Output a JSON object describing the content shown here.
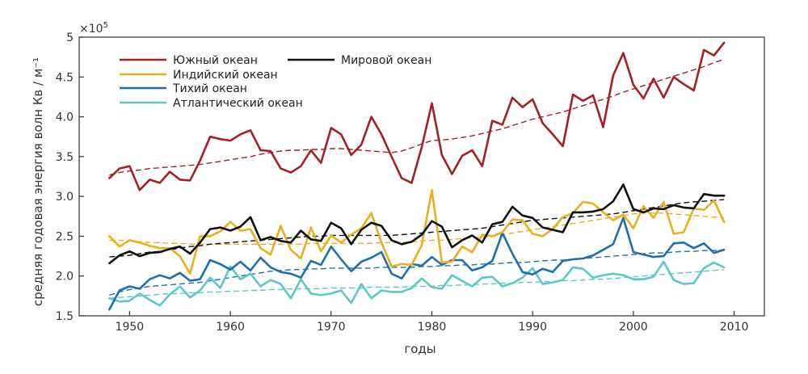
{
  "chart_data": {
    "type": "line",
    "xlabel": "годы",
    "ylabel": "средняя годовая энергия волн Кв / м⁻¹",
    "y_multiplier": "×10",
    "y_multiplier_exp": "5",
    "xlim": [
      1945,
      2013
    ],
    "ylim": [
      1.5,
      5.0
    ],
    "xticks": [
      "1950",
      "1960",
      "1970",
      "1980",
      "1990",
      "2000",
      "2010"
    ],
    "yticks": [
      "1.5",
      "2.0",
      "2.5",
      "3.0",
      "3.5",
      "4.0",
      "4.5",
      "5"
    ],
    "grid": false,
    "legend_position": "top-left",
    "years": [
      1948,
      1949,
      1950,
      1951,
      1952,
      1953,
      1954,
      1955,
      1956,
      1957,
      1958,
      1959,
      1960,
      1961,
      1962,
      1963,
      1964,
      1965,
      1966,
      1967,
      1968,
      1969,
      1970,
      1971,
      1972,
      1973,
      1974,
      1975,
      1976,
      1977,
      1978,
      1979,
      1980,
      1981,
      1982,
      1983,
      1984,
      1985,
      1986,
      1987,
      1988,
      1989,
      1990,
      1991,
      1992,
      1993,
      1994,
      1995,
      1996,
      1997,
      1998,
      1999,
      2000,
      2001,
      2002,
      2003,
      2004,
      2005,
      2006,
      2007,
      2008,
      2009
    ],
    "series": [
      {
        "name": "Южный океан",
        "color": "#a32024",
        "values": [
          3.23,
          3.35,
          3.38,
          3.08,
          3.21,
          3.17,
          3.31,
          3.21,
          3.2,
          3.45,
          3.75,
          3.72,
          3.7,
          3.78,
          3.83,
          3.58,
          3.57,
          3.35,
          3.3,
          3.38,
          3.58,
          3.42,
          3.86,
          3.78,
          3.52,
          3.65,
          4.0,
          3.78,
          3.5,
          3.23,
          3.17,
          3.62,
          4.17,
          3.52,
          3.28,
          3.51,
          3.58,
          3.38,
          3.95,
          3.9,
          4.24,
          4.12,
          4.22,
          3.92,
          3.78,
          3.63,
          4.28,
          4.2,
          4.27,
          3.87,
          4.52,
          4.8,
          4.4,
          4.23,
          4.48,
          4.24,
          4.5,
          4.41,
          4.33,
          4.84,
          4.77,
          4.93
        ],
        "trend": [
          3.27,
          3.3,
          3.32,
          3.33,
          3.35,
          3.36,
          3.37,
          3.38,
          3.39,
          3.4,
          3.42,
          3.44,
          3.46,
          3.48,
          3.5,
          3.53,
          3.55,
          3.57,
          3.58,
          3.58,
          3.59,
          3.59,
          3.6,
          3.6,
          3.59,
          3.58,
          3.57,
          3.56,
          3.55,
          3.57,
          3.61,
          3.66,
          3.7,
          3.71,
          3.72,
          3.74,
          3.76,
          3.79,
          3.82,
          3.85,
          3.89,
          3.93,
          3.97,
          4.0,
          4.03,
          4.06,
          4.1,
          4.14,
          4.18,
          4.22,
          4.26,
          4.31,
          4.35,
          4.39,
          4.43,
          4.47,
          4.51,
          4.55,
          4.59,
          4.63,
          4.68,
          4.72
        ]
      },
      {
        "name": "Мировой океан",
        "color": "#111111",
        "values": [
          2.16,
          2.26,
          2.31,
          2.25,
          2.29,
          2.3,
          2.34,
          2.37,
          2.28,
          2.42,
          2.59,
          2.61,
          2.57,
          2.62,
          2.74,
          2.45,
          2.49,
          2.44,
          2.42,
          2.57,
          2.46,
          2.44,
          2.67,
          2.6,
          2.4,
          2.58,
          2.67,
          2.63,
          2.45,
          2.4,
          2.43,
          2.52,
          2.69,
          2.62,
          2.36,
          2.45,
          2.51,
          2.42,
          2.65,
          2.68,
          2.87,
          2.76,
          2.73,
          2.61,
          2.58,
          2.55,
          2.8,
          2.8,
          2.81,
          2.84,
          2.94,
          3.15,
          2.84,
          2.8,
          2.85,
          2.84,
          2.89,
          2.86,
          2.85,
          3.03,
          3.01,
          3.01
        ],
        "trend": [
          2.24,
          2.25,
          2.26,
          2.28,
          2.3,
          2.31,
          2.33,
          2.35,
          2.37,
          2.38,
          2.4,
          2.41,
          2.42,
          2.43,
          2.44,
          2.45,
          2.46,
          2.47,
          2.48,
          2.49,
          2.5,
          2.5,
          2.51,
          2.51,
          2.51,
          2.51,
          2.51,
          2.51,
          2.51,
          2.52,
          2.53,
          2.54,
          2.55,
          2.56,
          2.57,
          2.58,
          2.59,
          2.6,
          2.62,
          2.64,
          2.66,
          2.68,
          2.7,
          2.71,
          2.72,
          2.73,
          2.74,
          2.75,
          2.76,
          2.77,
          2.78,
          2.8,
          2.82,
          2.84,
          2.86,
          2.88,
          2.9,
          2.92,
          2.93,
          2.94,
          2.95,
          2.96
        ]
      },
      {
        "name": "Индийский океан",
        "color": "#e8b021",
        "values": [
          2.5,
          2.37,
          2.45,
          2.42,
          2.38,
          2.35,
          2.35,
          2.25,
          2.03,
          2.5,
          2.5,
          2.56,
          2.68,
          2.57,
          2.59,
          2.35,
          2.27,
          2.63,
          2.33,
          2.22,
          2.61,
          2.31,
          2.51,
          2.42,
          2.52,
          2.6,
          2.79,
          2.42,
          2.12,
          2.15,
          2.14,
          2.39,
          3.08,
          2.17,
          2.18,
          2.37,
          2.3,
          2.52,
          2.5,
          2.55,
          2.71,
          2.7,
          2.53,
          2.5,
          2.59,
          2.74,
          2.79,
          2.93,
          2.91,
          2.8,
          2.7,
          2.77,
          2.6,
          2.88,
          2.73,
          2.93,
          2.53,
          2.55,
          2.85,
          2.83,
          2.95,
          2.68
        ],
        "trend": [
          2.45,
          2.45,
          2.44,
          2.43,
          2.42,
          2.42,
          2.41,
          2.41,
          2.4,
          2.4,
          2.4,
          2.4,
          2.4,
          2.4,
          2.4,
          2.4,
          2.4,
          2.4,
          2.4,
          2.4,
          2.41,
          2.41,
          2.41,
          2.41,
          2.41,
          2.41,
          2.41,
          2.42,
          2.42,
          2.42,
          2.43,
          2.44,
          2.45,
          2.45,
          2.46,
          2.47,
          2.48,
          2.49,
          2.5,
          2.52,
          2.54,
          2.56,
          2.58,
          2.6,
          2.62,
          2.64,
          2.66,
          2.68,
          2.7,
          2.72,
          2.74,
          2.76,
          2.78,
          2.79,
          2.79,
          2.79,
          2.78,
          2.77,
          2.76,
          2.75,
          2.74,
          2.73
        ]
      },
      {
        "name": "Тихий океан",
        "color": "#1f6fae",
        "values": [
          1.58,
          1.82,
          1.87,
          1.84,
          1.96,
          2.01,
          1.97,
          2.04,
          1.94,
          1.96,
          2.2,
          2.15,
          2.08,
          2.18,
          2.07,
          2.23,
          2.11,
          2.05,
          2.03,
          1.98,
          2.19,
          2.14,
          2.37,
          2.21,
          2.06,
          2.18,
          2.23,
          2.3,
          2.03,
          1.97,
          2.15,
          2.13,
          2.24,
          2.14,
          2.2,
          2.2,
          2.07,
          2.11,
          2.19,
          2.54,
          2.28,
          2.05,
          2.02,
          2.09,
          2.05,
          2.19,
          2.21,
          2.22,
          2.26,
          2.33,
          2.4,
          2.73,
          2.3,
          2.27,
          2.24,
          2.25,
          2.41,
          2.42,
          2.35,
          2.41,
          2.29,
          2.33
        ],
        "trend": [
          1.76,
          1.8,
          1.83,
          1.85,
          1.87,
          1.88,
          1.89,
          1.9,
          1.91,
          1.92,
          1.94,
          1.96,
          1.98,
          2.0,
          2.02,
          2.04,
          2.06,
          2.07,
          2.08,
          2.08,
          2.09,
          2.09,
          2.1,
          2.1,
          2.1,
          2.1,
          2.1,
          2.11,
          2.11,
          2.11,
          2.11,
          2.12,
          2.12,
          2.13,
          2.13,
          2.14,
          2.14,
          2.15,
          2.15,
          2.16,
          2.17,
          2.17,
          2.18,
          2.19,
          2.2,
          2.2,
          2.21,
          2.22,
          2.23,
          2.24,
          2.25,
          2.26,
          2.27,
          2.28,
          2.29,
          2.29,
          2.3,
          2.31,
          2.31,
          2.32,
          2.32,
          2.33
        ]
      },
      {
        "name": "Атлантический океан",
        "color": "#5fc7c4",
        "values": [
          1.72,
          1.68,
          1.69,
          1.78,
          1.7,
          1.63,
          1.77,
          1.87,
          1.73,
          1.82,
          1.98,
          1.85,
          2.12,
          1.96,
          2.03,
          1.87,
          1.95,
          1.9,
          1.72,
          1.96,
          1.78,
          1.76,
          1.78,
          1.82,
          1.66,
          1.9,
          1.72,
          1.82,
          1.8,
          1.8,
          1.85,
          1.97,
          1.86,
          1.84,
          2.01,
          1.94,
          1.87,
          1.98,
          1.99,
          1.87,
          1.91,
          1.98,
          2.1,
          1.9,
          1.92,
          1.95,
          2.11,
          2.09,
          1.98,
          2.01,
          2.03,
          2.01,
          1.96,
          1.96,
          1.99,
          2.18,
          1.95,
          1.9,
          1.91,
          2.1,
          2.17,
          2.11
        ],
        "trend": [
          1.72,
          1.73,
          1.74,
          1.75,
          1.76,
          1.77,
          1.78,
          1.78,
          1.79,
          1.79,
          1.8,
          1.8,
          1.81,
          1.81,
          1.82,
          1.82,
          1.83,
          1.83,
          1.84,
          1.84,
          1.84,
          1.84,
          1.85,
          1.85,
          1.85,
          1.85,
          1.86,
          1.86,
          1.86,
          1.86,
          1.87,
          1.87,
          1.87,
          1.88,
          1.88,
          1.89,
          1.89,
          1.9,
          1.9,
          1.91,
          1.91,
          1.92,
          1.92,
          1.93,
          1.93,
          1.94,
          1.94,
          1.95,
          1.96,
          1.96,
          1.97,
          1.98,
          1.99,
          2.0,
          2.01,
          2.02,
          2.03,
          2.04,
          2.05,
          2.06,
          2.07,
          2.08
        ]
      }
    ]
  }
}
